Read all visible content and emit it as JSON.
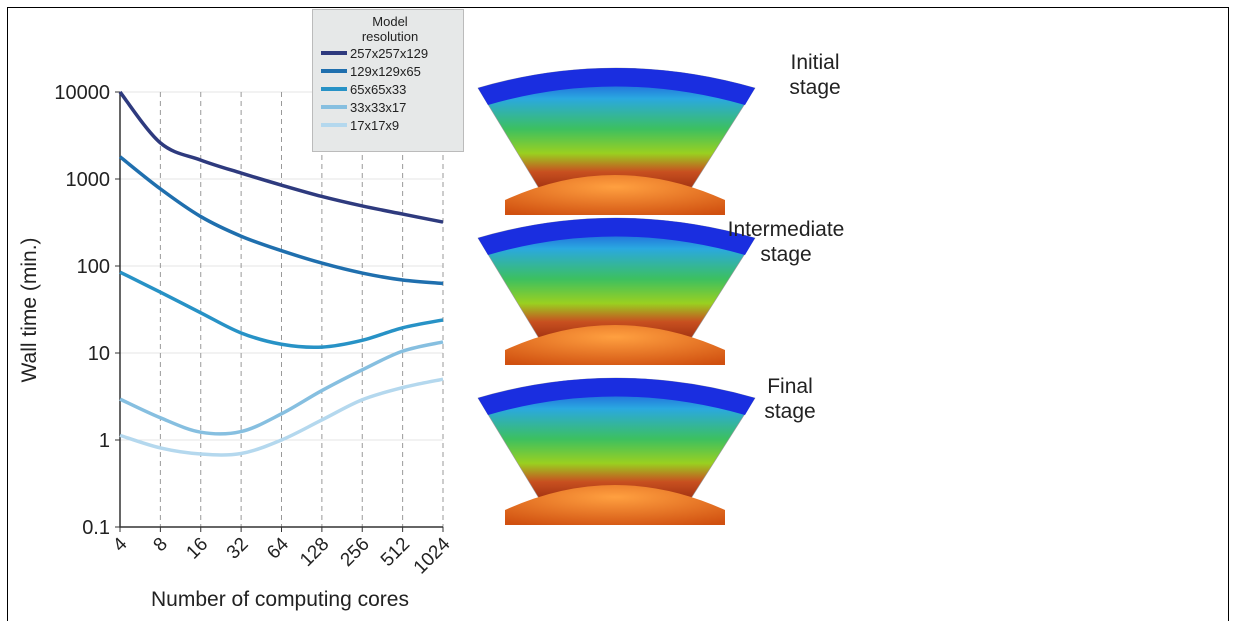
{
  "chart_data": {
    "type": "line",
    "ylabel": "Wall time (min.)",
    "xlabel": "Number of computing cores",
    "legend_title": "Model resolution",
    "xscale": "log",
    "yscale": "log",
    "grid": true,
    "x": [
      4,
      8,
      16,
      32,
      64,
      128,
      256,
      512,
      1024
    ],
    "xlim": [
      4,
      1024
    ],
    "xticks": [
      4,
      8,
      16,
      32,
      64,
      128,
      256,
      512,
      1024
    ],
    "ylim": [
      0.1,
      10000
    ],
    "yticks": [
      0.1,
      1,
      10,
      100,
      1000,
      10000
    ],
    "series": [
      {
        "name": "257x257x129",
        "color": "#2e3a7e",
        "values": [
          10000,
          2600,
          1650,
          1170,
          850,
          630,
          490,
          395,
          320
        ]
      },
      {
        "name": "129x129x65",
        "color": "#1f6fae",
        "values": [
          1800,
          770,
          370,
          220,
          150,
          108,
          83,
          69,
          63
        ]
      },
      {
        "name": "65x65x33",
        "color": "#2792c6",
        "values": [
          85,
          50,
          29,
          17,
          12.6,
          11.7,
          14,
          19.5,
          24
        ]
      },
      {
        "name": "33x33x17",
        "color": "#86bfe0",
        "values": [
          2.95,
          1.8,
          1.23,
          1.25,
          2,
          3.7,
          6.4,
          10.5,
          13.4
        ]
      },
      {
        "name": "17x17x9",
        "color": "#b4d8ee",
        "values": [
          1.13,
          0.81,
          0.69,
          0.7,
          1,
          1.7,
          2.9,
          4,
          5
        ]
      }
    ]
  },
  "stages": [
    "Initial stage",
    "Intermediate stage",
    "Final stage"
  ]
}
